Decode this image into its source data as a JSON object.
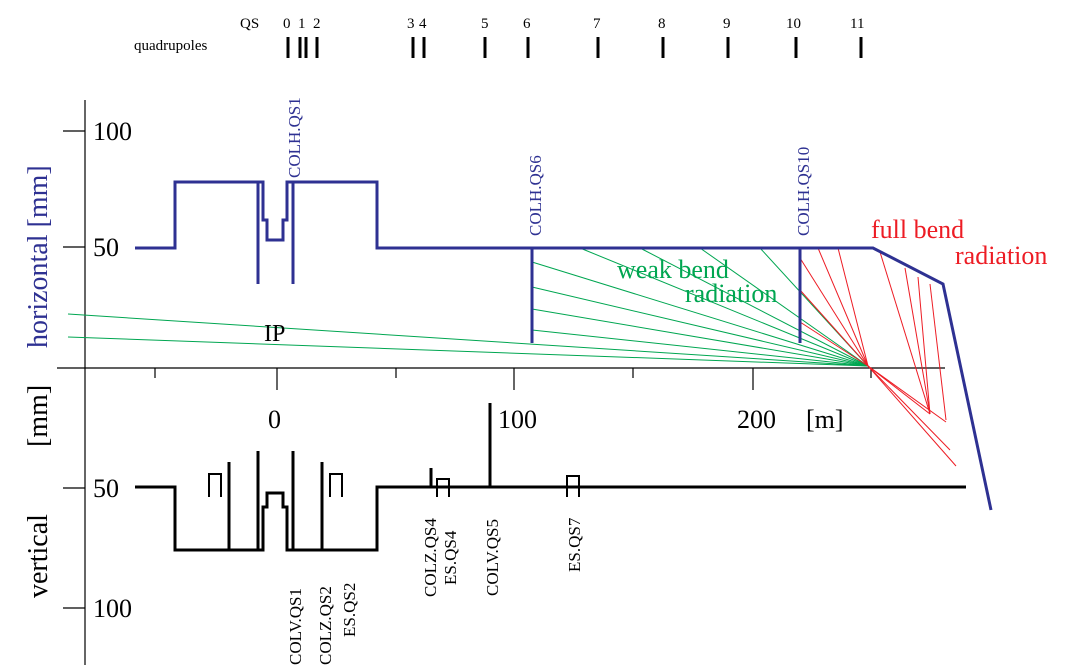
{
  "header": {
    "qs_label": "QS",
    "quad_label": "quadrupoles",
    "qs_numbers": [
      {
        "id": "qs0",
        "label": "0"
      },
      {
        "id": "qs1",
        "label": "1"
      },
      {
        "id": "qs2",
        "label": "2"
      },
      {
        "id": "qs3",
        "label": "3"
      },
      {
        "id": "qs4",
        "label": "4"
      },
      {
        "id": "qs5",
        "label": "5"
      },
      {
        "id": "qs6",
        "label": "6"
      },
      {
        "id": "qs7",
        "label": "7"
      },
      {
        "id": "qs8",
        "label": "8"
      },
      {
        "id": "qs9",
        "label": "9"
      },
      {
        "id": "qs10",
        "label": "10"
      },
      {
        "id": "qs11",
        "label": "11"
      }
    ]
  },
  "axes": {
    "horizontal_label": "horizontal [mm]",
    "vertical_label": "vertical",
    "vertical_unit": "[mm]",
    "h_ticks": {
      "t100": "100",
      "t50": "50"
    },
    "v_ticks": {
      "t50": "50",
      "t100": "100"
    },
    "x_ticks": {
      "t0": "0",
      "t100": "100",
      "t200": "200"
    },
    "x_unit": "[m]"
  },
  "labels": {
    "ip": "IP",
    "weak_bend": [
      "weak bend",
      "radiation"
    ],
    "full_bend": [
      "full bend",
      "radiation"
    ]
  },
  "collimators_h": {
    "qs1": "COLH.QS1",
    "qs6": "COLH.QS6",
    "qs10": "COLH.QS10"
  },
  "collimators_v": {
    "colv_qs1": "COLV.QS1",
    "colz_qs2": "COLZ.QS2",
    "es_qs2": "ES.QS2",
    "colz_qs4": "COLZ.QS4",
    "es_qs4": "ES.QS4",
    "colv_qs5": "COLV.QS5",
    "es_qs7": "ES.QS7"
  },
  "colors": {
    "horizontal": "#2e3192",
    "weak": "#00a651",
    "full": "#ed1c24",
    "vertical": "#000000"
  }
}
